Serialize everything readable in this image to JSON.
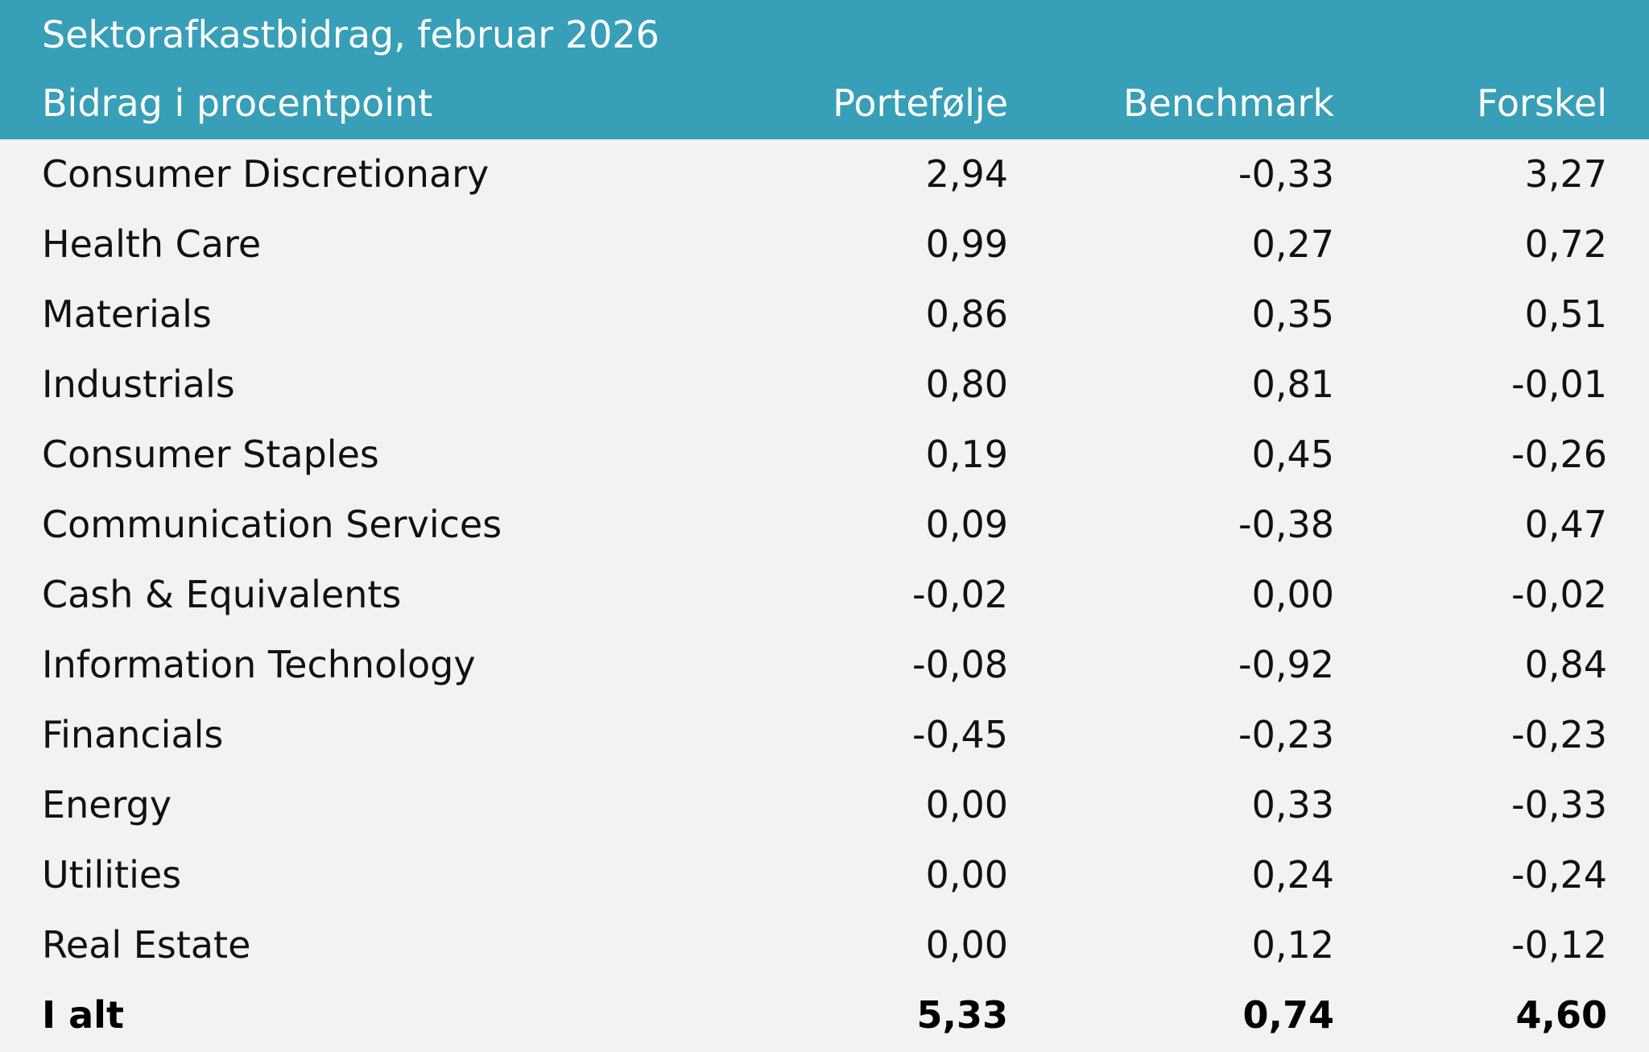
{
  "title": "Sektorafkastbidrag, februar 2026",
  "header": {
    "label": "Bidrag i procentpoint",
    "col1": "Portefølje",
    "col2": "Benchmark",
    "col3": "Forskel"
  },
  "rows": [
    {
      "label": "Consumer Discretionary",
      "portfolio": "2,94",
      "benchmark": "-0,33",
      "difference": "3,27"
    },
    {
      "label": "Health Care",
      "portfolio": "0,99",
      "benchmark": "0,27",
      "difference": "0,72"
    },
    {
      "label": "Materials",
      "portfolio": "0,86",
      "benchmark": "0,35",
      "difference": "0,51"
    },
    {
      "label": "Industrials",
      "portfolio": "0,80",
      "benchmark": "0,81",
      "difference": "-0,01"
    },
    {
      "label": "Consumer Staples",
      "portfolio": "0,19",
      "benchmark": "0,45",
      "difference": "-0,26"
    },
    {
      "label": "Communication Services",
      "portfolio": "0,09",
      "benchmark": "-0,38",
      "difference": "0,47"
    },
    {
      "label": "Cash & Equivalents",
      "portfolio": "-0,02",
      "benchmark": "0,00",
      "difference": "-0,02"
    },
    {
      "label": "Information Technology",
      "portfolio": "-0,08",
      "benchmark": "-0,92",
      "difference": "0,84"
    },
    {
      "label": "Financials",
      "portfolio": "-0,45",
      "benchmark": "-0,23",
      "difference": "-0,23"
    },
    {
      "label": "Energy",
      "portfolio": "0,00",
      "benchmark": "0,33",
      "difference": "-0,33"
    },
    {
      "label": "Utilities",
      "portfolio": "0,00",
      "benchmark": "0,24",
      "difference": "-0,24"
    },
    {
      "label": "Real Estate",
      "portfolio": "0,00",
      "benchmark": "0,12",
      "difference": "-0,12"
    }
  ],
  "total": {
    "label": "I alt",
    "portfolio": "5,33",
    "benchmark": "0,74",
    "difference": "4,60"
  },
  "colors": {
    "header_bg": "#379fb7",
    "header_text": "#ffffff",
    "body_bg": "#f2f2f2",
    "body_text": "#111111"
  }
}
